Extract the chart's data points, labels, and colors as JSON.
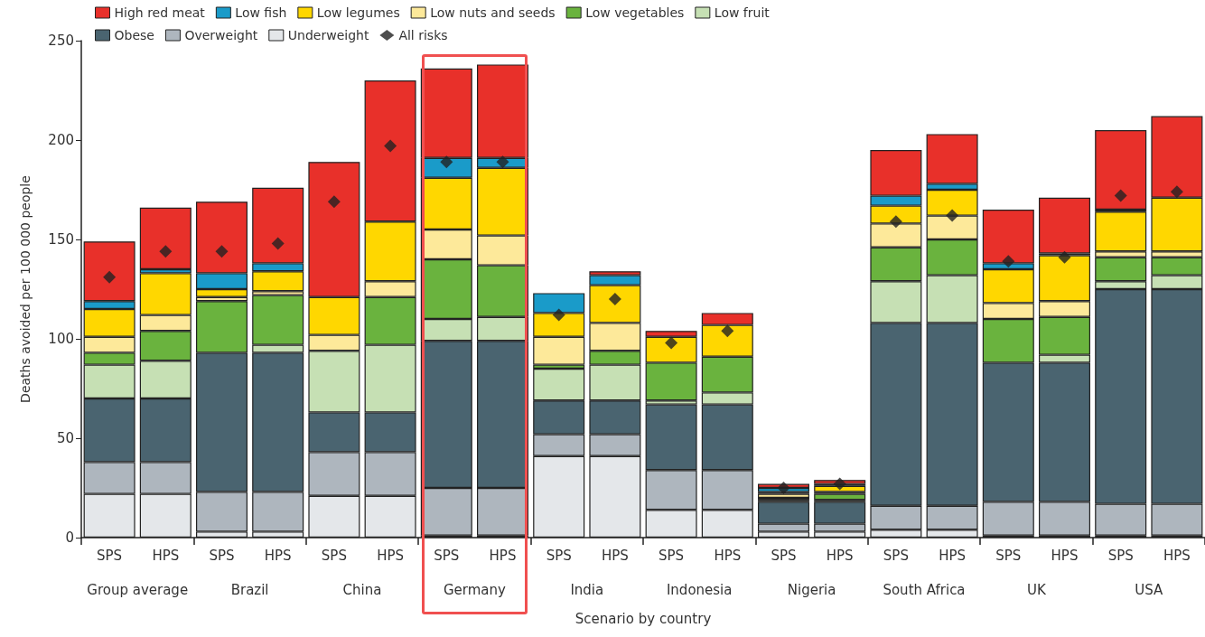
{
  "chart_data": {
    "type": "bar",
    "stacked": true,
    "xlabel": "Scenario by country",
    "ylabel": "Deaths avoided per 100 000 people",
    "categories": [
      "SPS",
      "HPS",
      "SPS",
      "HPS",
      "SPS",
      "HPS",
      "SPS",
      "HPS",
      "SPS",
      "HPS",
      "SPS",
      "HPS",
      "SPS",
      "HPS",
      "SPS",
      "HPS",
      "SPS",
      "HPS",
      "SPS",
      "HPS"
    ],
    "annotations": [
      "Group average",
      "Brazil",
      "China",
      "Germany",
      "India",
      "Indonesia",
      "Nigeria",
      "South Africa",
      "UK",
      "USA"
    ],
    "ylim": [
      0,
      250
    ],
    "yticks": [
      0,
      50,
      100,
      150,
      200,
      250
    ],
    "grid": false,
    "legend": "top left",
    "series": [
      {
        "name": "Underweight",
        "color": "#e4e7ea",
        "values": [
          22,
          22,
          3,
          3,
          21,
          21,
          1,
          1,
          41,
          41,
          14,
          14,
          3,
          3,
          4,
          4,
          1,
          1,
          1,
          1
        ]
      },
      {
        "name": "Overweight",
        "color": "#aeb6be",
        "values": [
          16,
          16,
          20,
          20,
          22,
          22,
          24,
          24,
          11,
          11,
          20,
          20,
          4,
          4,
          12,
          12,
          17,
          17,
          16,
          16
        ]
      },
      {
        "name": "Obese",
        "color": "#4a6470",
        "values": [
          32,
          32,
          70,
          70,
          20,
          20,
          74,
          74,
          17,
          17,
          33,
          33,
          11,
          11,
          92,
          92,
          70,
          70,
          108,
          108
        ]
      },
      {
        "name": "Low fruit",
        "color": "#c6e0b4",
        "values": [
          17,
          19,
          0,
          4,
          31,
          34,
          11,
          12,
          16,
          18,
          2,
          6,
          1,
          1,
          21,
          24,
          0,
          4,
          4,
          7
        ]
      },
      {
        "name": "Low vegetables",
        "color": "#6ab33e",
        "values": [
          6,
          15,
          26,
          25,
          0,
          24,
          30,
          26,
          2,
          7,
          19,
          18,
          1,
          3,
          17,
          18,
          22,
          19,
          12,
          9
        ]
      },
      {
        "name": "Low nuts and seeds",
        "color": "#fde99a",
        "values": [
          8,
          8,
          2,
          2,
          8,
          8,
          15,
          15,
          14,
          14,
          0,
          0,
          2,
          1,
          12,
          12,
          8,
          8,
          3,
          3
        ]
      },
      {
        "name": "Low legumes",
        "color": "#ffd700",
        "values": [
          14,
          21,
          4,
          10,
          19,
          30,
          26,
          34,
          12,
          19,
          13,
          16,
          1,
          3,
          9,
          13,
          17,
          23,
          20,
          27
        ]
      },
      {
        "name": "Low fish",
        "color": "#1a9bc9",
        "values": [
          4,
          2,
          8,
          4,
          0,
          0,
          10,
          5,
          10,
          5,
          0,
          0,
          2,
          1,
          5,
          3,
          3,
          1,
          1,
          0
        ]
      },
      {
        "name": "High red meat",
        "color": "#e8302a",
        "values": [
          30,
          31,
          36,
          38,
          68,
          71,
          45,
          47,
          0,
          2,
          3,
          6,
          2,
          2,
          23,
          25,
          27,
          28,
          40,
          41
        ]
      },
      {
        "name": "All risks",
        "type": "scatter",
        "marker": "diamond",
        "color": "#222222",
        "values": [
          131,
          144,
          144,
          148,
          169,
          197,
          189,
          189,
          112,
          120,
          98,
          104,
          25,
          27,
          159,
          162,
          139,
          141,
          172,
          174
        ]
      }
    ]
  }
}
